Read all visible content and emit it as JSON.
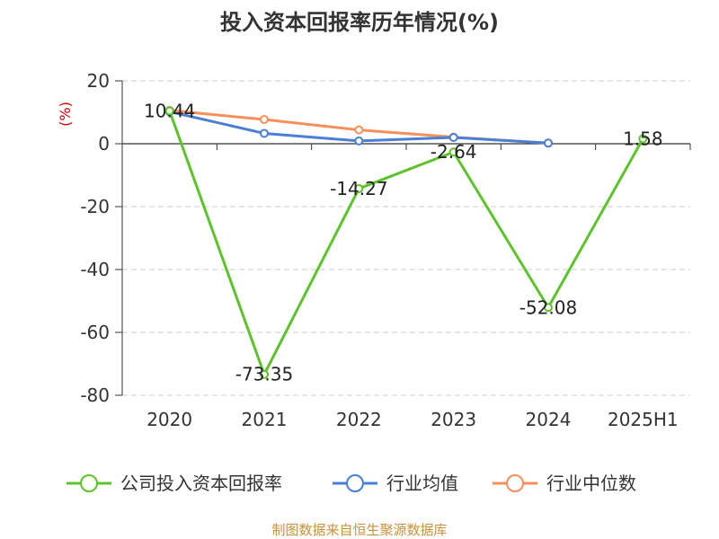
{
  "chart_data": {
    "type": "line",
    "title": "投入资本回报率历年情况(%)",
    "ylabel": "(%)",
    "xlabel": "",
    "categories": [
      "2020",
      "2021",
      "2022",
      "2023",
      "2024",
      "2025H1"
    ],
    "ylim": [
      -80,
      20
    ],
    "yticks": [
      20,
      0,
      -20,
      -40,
      -60,
      -80
    ],
    "grid": true,
    "legend_position": "bottom",
    "series": [
      {
        "name": "公司投入资本回报率",
        "color": "#5cc42a",
        "values": [
          10.44,
          -73.35,
          -14.27,
          -2.64,
          -52.08,
          1.58
        ],
        "labels": [
          "10.44",
          "-73.35",
          "-14.27",
          "-2.64",
          "-52.08",
          "1.58"
        ]
      },
      {
        "name": "行业均值",
        "color": "#4a7fd6",
        "values": [
          10.2,
          3.3,
          0.9,
          2.0,
          0.2,
          null
        ]
      },
      {
        "name": "行业中位数",
        "color": "#f5905a",
        "values": [
          10.6,
          7.7,
          4.4,
          2.1,
          0.2,
          null
        ]
      }
    ],
    "source": "制图数据来自恒生聚源数据库"
  }
}
